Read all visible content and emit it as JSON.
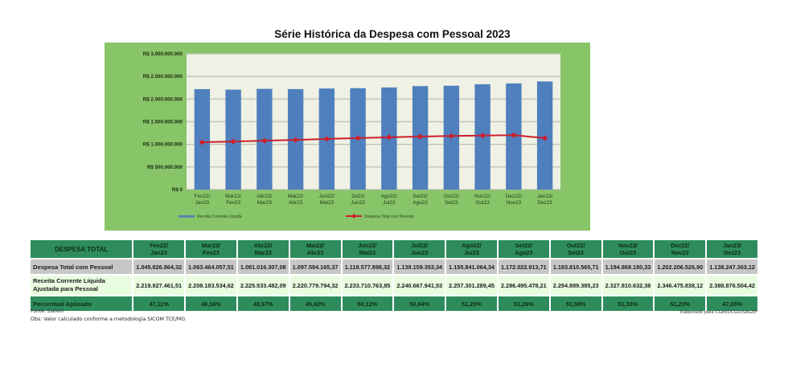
{
  "title": "Série Histórica da Despesa com Pessoal 2023",
  "colors": {
    "chart_background": "#88c468",
    "plot_background": "#eef1e3",
    "bar": "#4f7fbd",
    "line": "#cc1f2c",
    "table_header": "#2e8c5c",
    "row_despesa": "#c7c7c7",
    "row_receita": "#e8fde0"
  },
  "chart_data": {
    "type": "bar",
    "title": "Série Histórica da Despesa com Pessoal 2023",
    "xlabel": "",
    "ylabel": "",
    "ylim": [
      0,
      3000000000
    ],
    "yticks": [
      0,
      500000000,
      1000000000,
      1500000000,
      2000000000,
      2500000000,
      3000000000
    ],
    "ytick_labels": [
      "R$ 0",
      "R$ 500.000.000",
      "R$ 1.000.000.000",
      "R$ 1.500.000.000",
      "R$ 2.000.000.000",
      "R$ 2.500.000.000",
      "R$ 3.000.000.000"
    ],
    "grid": true,
    "legend_position": "bottom",
    "categories": [
      [
        "Fev22/",
        "Jan23"
      ],
      [
        "Mar22/",
        "Fev23"
      ],
      [
        "Abr22/",
        "Mar23"
      ],
      [
        "Mai22/",
        "Abr23"
      ],
      [
        "Jun22/",
        "Mai23"
      ],
      [
        "Jul22/",
        "Jun23"
      ],
      [
        "Ago22/",
        "Jul23"
      ],
      [
        "Set22/",
        "Ago23"
      ],
      [
        "Out22/",
        "Set23"
      ],
      [
        "Nov22/",
        "Out23"
      ],
      [
        "Dez22/",
        "Nov23"
      ],
      [
        "Jan23/",
        "Dez23"
      ]
    ],
    "series": [
      {
        "name": "Receita Corrente Líquida",
        "type": "bar",
        "values": [
          2219927461.51,
          2208183534.62,
          2225533482.09,
          2220779794.32,
          2233710763.85,
          2240667941.53,
          2257301289.45,
          2286495478.21,
          2294889385.23,
          2327810632.38,
          2346475838.12,
          2388876504.42
        ]
      },
      {
        "name": "Despesa Total com Pessoal",
        "type": "line",
        "values": [
          1045826864.32,
          1063464057.51,
          1081016307.08,
          1097594165.37,
          1119577898.32,
          1139159353.34,
          1155841064.34,
          1172022913.71,
          1183810565.71,
          1194868180.33,
          1202206526.9,
          1138247363.12
        ]
      }
    ]
  },
  "table": {
    "header_label": "DESPESA TOTAL",
    "columns": [
      [
        "Fev22/",
        "Jan23"
      ],
      [
        "Mar22/",
        "Fev23"
      ],
      [
        "Abr22/",
        "Mar23"
      ],
      [
        "Mai22/",
        "Abr23"
      ],
      [
        "Jun22/",
        "Mai23"
      ],
      [
        "Jul22/",
        "Jun23"
      ],
      [
        "Ago22/",
        "Jul23"
      ],
      [
        "Set22/",
        "Ago23"
      ],
      [
        "Out22/",
        "Set23"
      ],
      [
        "Nov22/",
        "Out23"
      ],
      [
        "Dez22/",
        "Nov23"
      ],
      [
        "Jan23/",
        "Dez23"
      ]
    ],
    "rows": [
      {
        "label": "Despesa Total com Pessoal",
        "values": [
          "1.045.826.864,32",
          "1.063.464.057,51",
          "1.081.016.307,08",
          "1.097.594.165,37",
          "1.119.577.898,32",
          "1.139.159.353,34",
          "1.155.841.064,34",
          "1.172.022.913,71",
          "1.183.810.565,71",
          "1.194.868.180,33",
          "1.202.206.526,90",
          "1.138.247.363,12"
        ]
      },
      {
        "label": "Receita Corrente Líquida Ajustada para Pessoal",
        "values": [
          "2.219.927.461,51",
          "2.208.183.534,62",
          "2.225.533.482,09",
          "2.220.779.794,32",
          "2.233.710.763,85",
          "2.240.667.941,53",
          "2.257.301.289,45",
          "2.286.495.478,21",
          "2.294.889.385,23",
          "2.327.810.632,38",
          "2.346.475.838,12",
          "2.388.876.504,42"
        ]
      },
      {
        "label": "Percentual Aplicado",
        "values": [
          "47,11%",
          "48,16%",
          "48,57%",
          "49,42%",
          "50,12%",
          "50,84%",
          "51,20%",
          "51,26%",
          "51,58%",
          "51,33%",
          "51,23%",
          "47,65%"
        ]
      }
    ]
  },
  "footer": {
    "fonte": "Fonte: Siafem",
    "obs": "Obs: Valor calculado conforme a metodologia SICOM TCE/MG",
    "elaborado": "Elaborado pela CGM/DCGO/SAGEF"
  }
}
